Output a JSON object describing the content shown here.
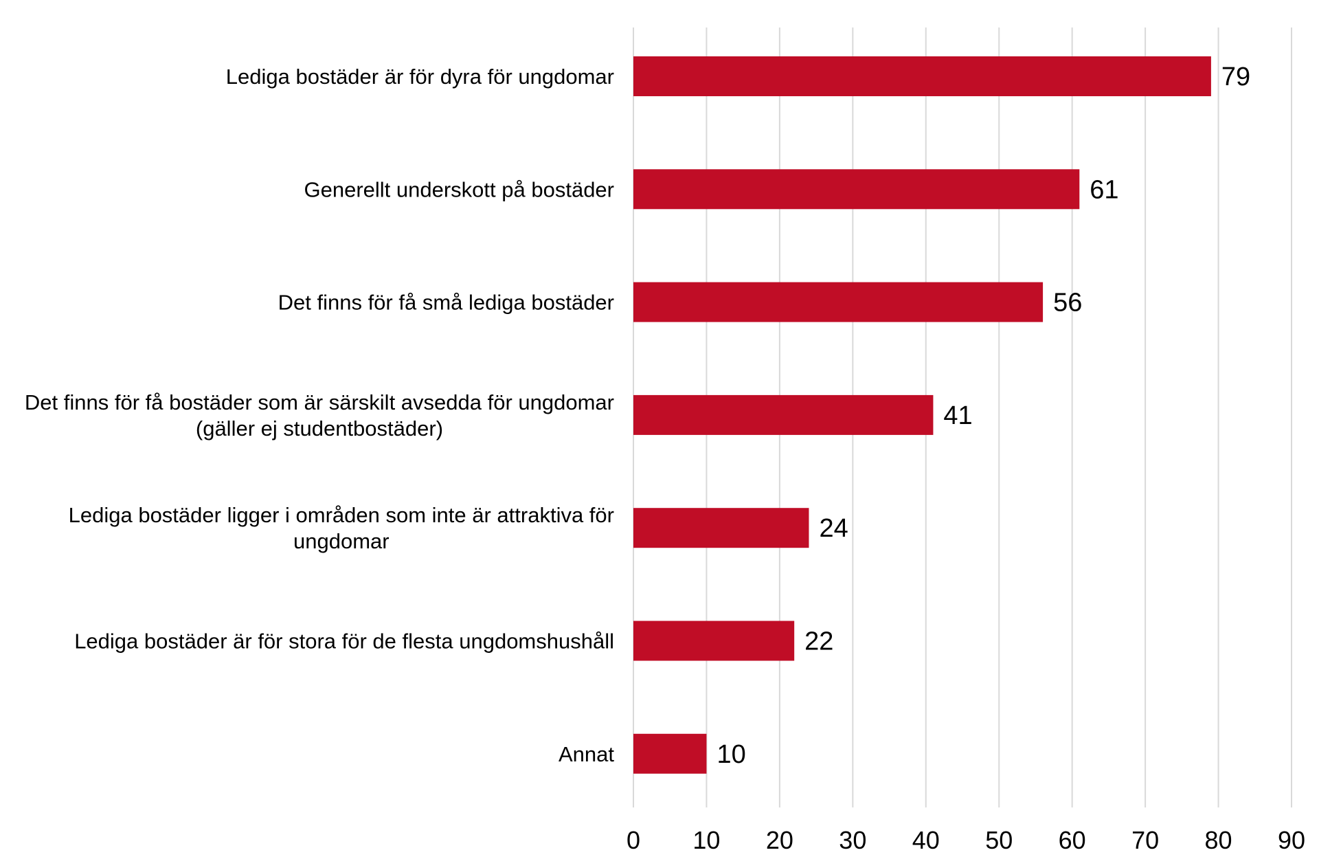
{
  "chart_data": {
    "type": "bar",
    "orientation": "horizontal",
    "title": "",
    "xlabel": "",
    "ylabel": "",
    "xlim": [
      0,
      90
    ],
    "ticks": [
      0,
      10,
      20,
      30,
      40,
      50,
      60,
      70,
      80,
      90
    ],
    "grid": true,
    "legend": "none",
    "bar_color": "#c00d26",
    "categories": [
      [
        "Lediga bostäder är för dyra för ungdomar"
      ],
      [
        "Generellt underskott på bostäder"
      ],
      [
        "Det finns för få små lediga bostäder"
      ],
      [
        "Det finns för få bostäder som är särskilt avsedda för ungdomar",
        "(gäller ej studentbostäder)"
      ],
      [
        "Lediga bostäder ligger i områden som inte är attraktiva för",
        "ungdomar"
      ],
      [
        "Lediga bostäder är för stora för de flesta ungdomshushåll"
      ],
      [
        "Annat"
      ]
    ],
    "values": [
      79,
      61,
      56,
      41,
      24,
      22,
      10
    ]
  }
}
